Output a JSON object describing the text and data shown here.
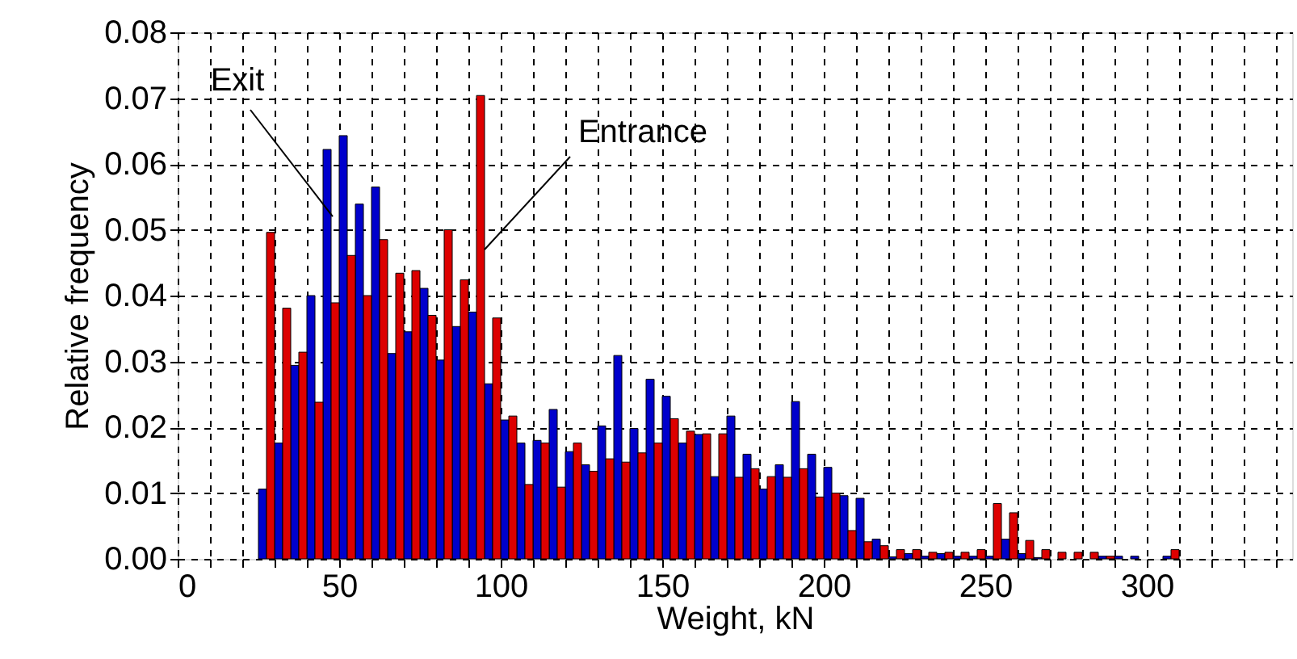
{
  "chart_data": {
    "type": "bar",
    "xlabel": "Weight, kN",
    "ylabel": "Relative frequency",
    "x": [
      27.5,
      32.5,
      37.5,
      42.5,
      47.5,
      52.5,
      57.5,
      62.5,
      67.5,
      72.5,
      77.5,
      82.5,
      87.5,
      92.5,
      97.5,
      102.5,
      107.5,
      112.5,
      117.5,
      122.5,
      127.5,
      132.5,
      137.5,
      142.5,
      147.5,
      152.5,
      157.5,
      162.5,
      167.5,
      172.5,
      177.5,
      182.5,
      187.5,
      192.5,
      197.5,
      202.5,
      207.5,
      212.5,
      217.5,
      222.5,
      227.5,
      232.5,
      237.5,
      242.5,
      247.5,
      252.5,
      257.5,
      262.5,
      267.5,
      272.5,
      277.5,
      282.5,
      287.5,
      292.5,
      297.5,
      302.5,
      307.5
    ],
    "series": [
      {
        "color": "#0000cc",
        "values": [
          0.0106,
          0.0176,
          0.0294,
          0.04,
          0.0622,
          0.0643,
          0.0539,
          0.0565,
          0.0312,
          0.0345,
          0.0411,
          0.0302,
          0.0353,
          0.0375,
          0.0266,
          0.0211,
          0.0176,
          0.018,
          0.0227,
          0.0163,
          0.0143,
          0.0202,
          0.0309,
          0.0198,
          0.0273,
          0.0247,
          0.0176,
          0.0189,
          0.0125,
          0.0217,
          0.0159,
          0.0106,
          0.0143,
          0.0239,
          0.0159,
          0.0139,
          0.0096,
          0.0092,
          0.003,
          0.0003,
          0.0008,
          0.0004,
          0.0008,
          0.0004,
          0.0004,
          0.0004,
          0.003,
          0.0008,
          0.0002,
          null,
          null,
          null,
          0.0004,
          0.0004,
          0.0004,
          null,
          0.0004
        ]
      },
      {
        "color": "#dd0000",
        "values": [
          0.0496,
          0.0381,
          0.0314,
          0.0238,
          0.0389,
          0.0461,
          0.04,
          0.0485,
          0.0434,
          0.0438,
          0.037,
          0.05,
          0.0424,
          0.0704,
          0.0366,
          0.0217,
          0.0113,
          0.0176,
          0.0109,
          0.0176,
          0.0133,
          0.0152,
          0.0147,
          0.0161,
          0.0176,
          0.0213,
          0.0194,
          0.019,
          0.019,
          0.0124,
          0.0137,
          0.0125,
          0.0124,
          0.0137,
          0.0094,
          0.01,
          0.0043,
          0.0026,
          0.002,
          0.0014,
          0.0014,
          0.001,
          0.001,
          0.001,
          0.0014,
          0.0084,
          0.007,
          0.0028,
          0.0014,
          0.001,
          0.001,
          0.001,
          0.0004,
          null,
          null,
          null,
          0.0014
        ]
      }
    ],
    "xlim": [
      0,
      345
    ],
    "xticks": [
      0,
      {
        "value": 10,
        "label": null
      },
      {
        "value": 20,
        "label": null
      },
      {
        "value": 30,
        "label": null
      },
      {
        "value": 40,
        "label": null
      },
      50,
      {
        "value": 60,
        "label": null
      },
      {
        "value": 70,
        "label": null
      },
      {
        "value": 80,
        "label": null
      },
      {
        "value": 90,
        "label": null
      },
      100,
      {
        "value": 110,
        "label": null
      },
      {
        "value": 120,
        "label": null
      },
      {
        "value": 130,
        "label": null
      },
      {
        "value": 140,
        "label": null
      },
      150,
      {
        "value": 160,
        "label": null
      },
      {
        "value": 170,
        "label": null
      },
      {
        "value": 180,
        "label": null
      },
      {
        "value": 190,
        "label": null
      },
      200,
      {
        "value": 210,
        "label": null
      },
      {
        "value": 220,
        "label": null
      },
      {
        "value": 230,
        "label": null
      },
      {
        "value": 240,
        "label": null
      },
      250,
      {
        "value": 260,
        "label": null
      },
      {
        "value": 270,
        "label": null
      },
      {
        "value": 280,
        "label": null
      },
      {
        "value": 290,
        "label": null
      },
      300,
      {
        "value": 310,
        "label": null
      },
      {
        "value": 320,
        "label": null
      },
      {
        "value": 330,
        "label": null
      },
      {
        "value": 340,
        "label": null
      }
    ],
    "ylim": [
      0,
      0.08
    ],
    "yticks": [
      {
        "value": 0,
        "label": "0.00"
      },
      {
        "value": 0.01,
        "label": "0.01"
      },
      {
        "value": 0.02,
        "label": "0.02"
      },
      {
        "value": 0.03,
        "label": "0.03"
      },
      {
        "value": 0.04,
        "label": "0.04"
      },
      {
        "value": 0.05,
        "label": "0.05"
      },
      {
        "value": 0.06,
        "label": "0.06"
      },
      {
        "value": 0.07,
        "label": "0.07"
      },
      {
        "value": 0.08,
        "label": "0.08"
      }
    ],
    "grid": true,
    "annotations": [
      {
        "text": "Exit",
        "x": 48,
        "y": 0.052
      },
      {
        "text": "Entrance",
        "x": 95,
        "y": 0.047
      }
    ]
  }
}
